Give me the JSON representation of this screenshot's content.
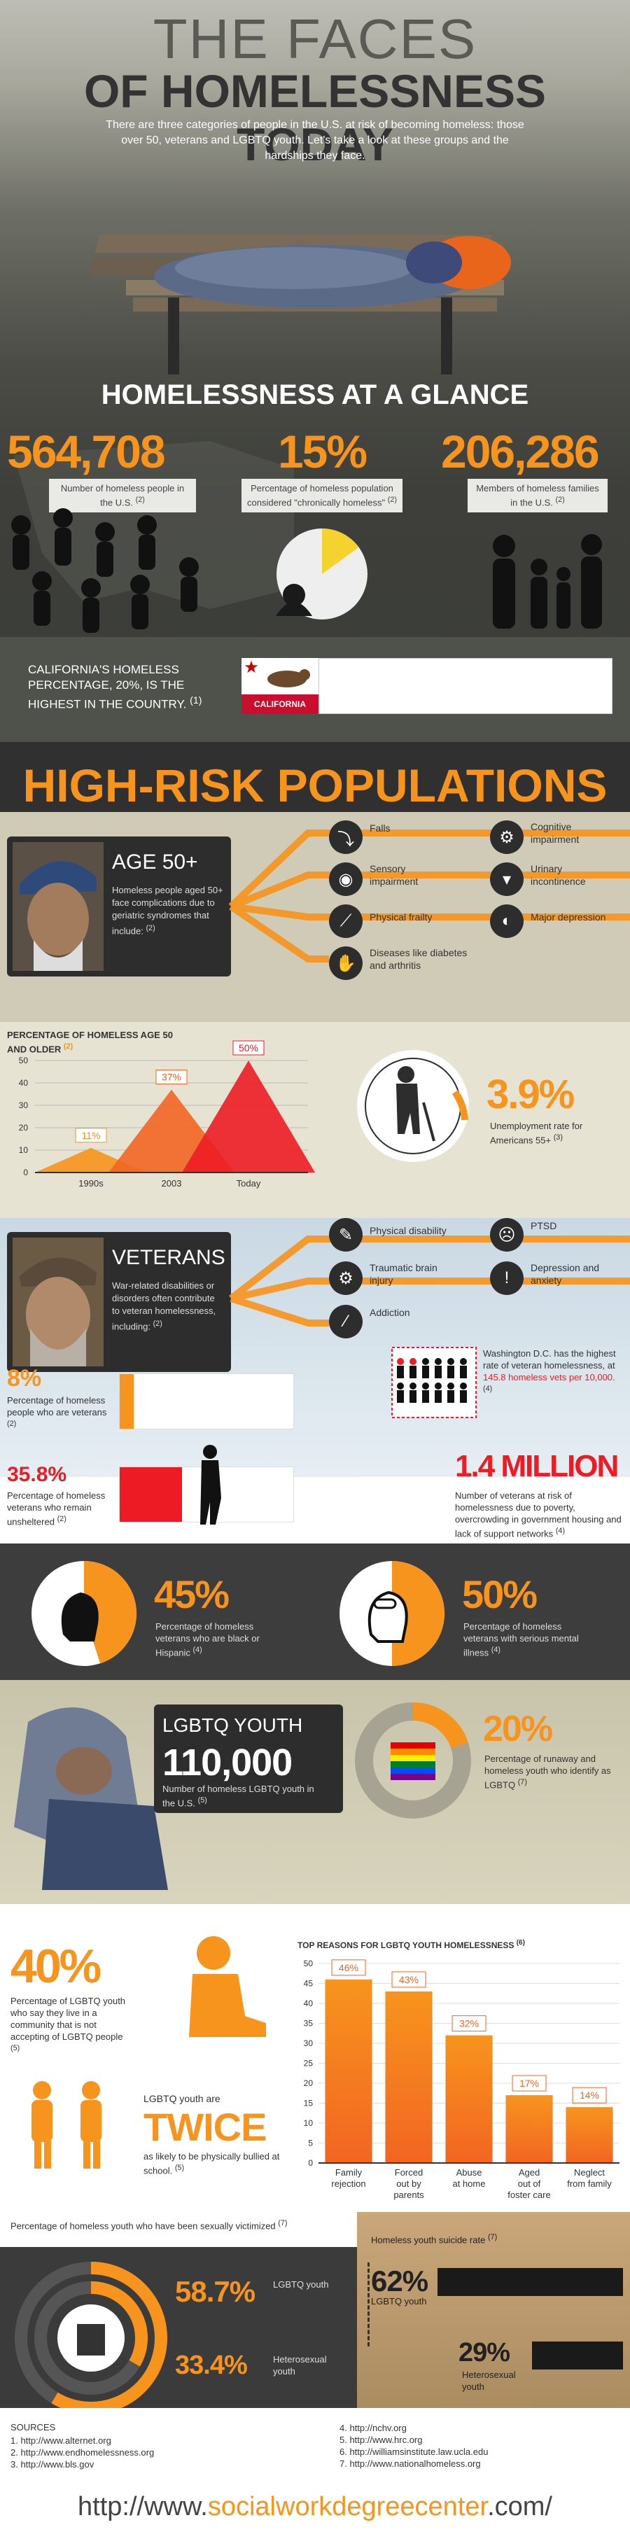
{
  "header": {
    "title_line1": "THE FACES",
    "title_line2": "OF HOMELESSNESS TODAY",
    "intro": "There are three categories of people in the U.S. at risk of becoming homeless: those over 50, veterans and LGBTQ youth. Let's take a look at these groups and the hardships they face."
  },
  "glance": {
    "title": "HOMELESSNESS AT A GLANCE",
    "stats": [
      {
        "value": "564,708",
        "label": "Number of homeless people in the U.S.",
        "ref": "(2)"
      },
      {
        "value": "15%",
        "label": "Percentage of homeless population considered \"chronically homeless\"",
        "ref": "(2)"
      },
      {
        "value": "206,286",
        "label": "Members of homeless families in the U.S.",
        "ref": "(2)"
      }
    ],
    "chronic_fraction": 0.15
  },
  "california": {
    "text": "CALIFORNIA'S HOMELESS PERCENTAGE, 20%, IS THE HIGHEST IN THE COUNTRY.",
    "ref": "(1)",
    "flag_label": "CALIFORNIA",
    "fraction": 0.2
  },
  "high_risk": {
    "title": "HIGH-RISK POPULATIONS"
  },
  "age": {
    "title": "AGE 50+",
    "desc": "Homeless people aged 50+ face complications due to geriatric syndromes that include:",
    "ref": "(2)",
    "items": [
      {
        "label": "Falls",
        "icon": "falling-person-icon"
      },
      {
        "label": "Cognitive impairment",
        "icon": "brain-icon"
      },
      {
        "label": "Sensory impairment",
        "icon": "eye-icon"
      },
      {
        "label": "Urinary incontinence",
        "icon": "drop-icon"
      },
      {
        "label": "Physical frailty",
        "icon": "bone-icon"
      },
      {
        "label": "Major depression",
        "icon": "eye-sad-icon"
      },
      {
        "label": "Diseases like diabetes and arthritis",
        "icon": "hand-icon"
      }
    ]
  },
  "age_chart": {
    "title": "PERCENTAGE OF HOMELESS AGE 50 AND OLDER",
    "ref": "(2)",
    "unemployment_value": "3.9%",
    "unemployment_label": "Unemployment rate for Americans 55+",
    "unemployment_ref": "(3)"
  },
  "chart_data": {
    "type": "area",
    "title": "PERCENTAGE OF HOMELESS AGE 50 AND OLDER",
    "categories": [
      "1990s",
      "2003",
      "Today"
    ],
    "values": [
      11,
      37,
      50
    ],
    "data_labels": [
      "11%",
      "37%",
      "50%"
    ],
    "ylim": [
      0,
      50
    ],
    "yticks": [
      0,
      10,
      20,
      30,
      40,
      50
    ]
  },
  "veterans": {
    "title": "VETERANS",
    "desc": "War-related disabilities or disorders often contribute to veteran homelessness, including:",
    "ref": "(2)",
    "items": [
      {
        "label": "Physical disability",
        "icon": "syringe-icon"
      },
      {
        "label": "PTSD",
        "icon": "mask-icon"
      },
      {
        "label": "Traumatic brain injury",
        "icon": "brain-icon"
      },
      {
        "label": "Depression and anxiety",
        "icon": "alert-icon"
      },
      {
        "label": "Addiction",
        "icon": "pill-icon"
      }
    ],
    "pct_vets_value": "8%",
    "pct_vets_label": "Percentage of homeless people who are veterans",
    "pct_vets_ref": "(2)",
    "pct_vets_fraction": 0.08,
    "unsheltered_value": "35.8%",
    "unsheltered_label": "Percentage of homeless veterans who remain unsheltered",
    "unsheltered_ref": "(2)",
    "unsheltered_fraction": 0.358,
    "dc_text_pre": "Washington D.C. has the highest rate of veteran homelessness, at",
    "dc_highlight": "145.8 homeless vets per 10,000.",
    "dc_ref": "(4)",
    "million_value": "1.4 MILLION",
    "million_label": "Number of veterans at risk of homelessness due to poverty, overcrowding in government housing and lack of support networks",
    "million_ref": "(4)",
    "pie1_value": "45%",
    "pie1_label": "Percentage of homeless veterans who are black or Hispanic",
    "pie1_ref": "(4)",
    "pie1_fraction": 0.45,
    "pie2_value": "50%",
    "pie2_label": "Percentage of homeless veterans with serious mental illness",
    "pie2_ref": "(4)",
    "pie2_fraction": 0.5
  },
  "lgbtq": {
    "title": "LGBTQ YOUTH",
    "count": "110,000",
    "count_label": "Number of homeless LGBTQ youth in the U.S.",
    "count_ref": "(5)",
    "pct_value": "20%",
    "pct_label": "Percentage of runaway and homeless youth who identify as LGBTQ",
    "pct_ref": "(7)",
    "pct_fraction": 0.2,
    "community_value": "40%",
    "community_label": "Percentage of LGBTQ youth who say they live in a community that is not accepting of LGBTQ people",
    "community_ref": "(5)",
    "twice_pre": "LGBTQ youth are",
    "twice_value": "TWICE",
    "twice_label": "as likely to be physically bullied at school.",
    "twice_ref": "(5)",
    "reasons_title": "TOP REASONS FOR LGBTQ YOUTH HOMELESSNESS",
    "reasons_ref": "(6)",
    "reasons_yticks": [
      "0",
      "5",
      "10",
      "15",
      "20",
      "25",
      "30",
      "35",
      "40",
      "45",
      "50"
    ],
    "reasons": [
      {
        "label": "Family rejection",
        "value": 46,
        "tag": "46%"
      },
      {
        "label": "Forced out by parents",
        "value": 43,
        "tag": "43%"
      },
      {
        "label": "Abuse at home",
        "value": 32,
        "tag": "32%"
      },
      {
        "label": "Aged out of foster care",
        "value": 17,
        "tag": "17%"
      },
      {
        "label": "Neglect from family",
        "value": 14,
        "tag": "14%"
      }
    ]
  },
  "victim": {
    "title": "Percentage of homeless youth who have been sexually victimized",
    "ref": "(7)",
    "lgbtq_value": "58.7%",
    "lgbtq_label": "LGBTQ youth",
    "lgbtq_fraction": 0.587,
    "hetero_value": "33.4%",
    "hetero_label": "Heterosexual youth",
    "hetero_fraction": 0.334,
    "suicide_title": "Homeless youth suicide rate",
    "suicide_ref": "(7)",
    "suicide_lgbtq_value": "62%",
    "suicide_lgbtq_label": "LGBTQ youth",
    "suicide_hetero_value": "29%",
    "suicide_hetero_label": "Heterosexual youth"
  },
  "sources": {
    "title": "SOURCES",
    "left": [
      "1. http://www.alternet.org",
      "2. http://www.endhomelessness.org",
      "3. http://www.bls.gov"
    ],
    "right": [
      "4. http://nchv.org",
      "5. http://www.hrc.org",
      "6. http://williamsinstitute.law.ucla.edu",
      "7. http://www.nationalhomeless.org"
    ],
    "footer_pre": "http://www.",
    "footer_brand": "socialworkdegreecenter",
    "footer_post": ".com/"
  },
  "colors": {
    "accent": "#f7941d",
    "red": "#ed1c24",
    "dark": "#2d2d2d"
  }
}
